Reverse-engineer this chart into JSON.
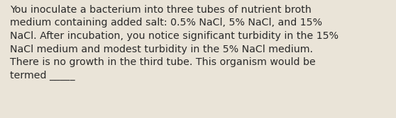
{
  "text": "You inoculate a bacterium into three tubes of nutrient broth\nmedium containing added salt: 0.5% NaCl, 5% NaCl, and 15%\nNaCl. After incubation, you notice significant turbidity in the 15%\nNaCl medium and modest turbidity in the 5% NaCl medium.\nThere is no growth in the third tube. This organism would be\ntermed _____",
  "background_color": "#eae4d8",
  "text_color": "#2a2a2a",
  "font_size": 10.2,
  "fig_width": 5.58,
  "fig_height": 1.67,
  "dpi": 100
}
